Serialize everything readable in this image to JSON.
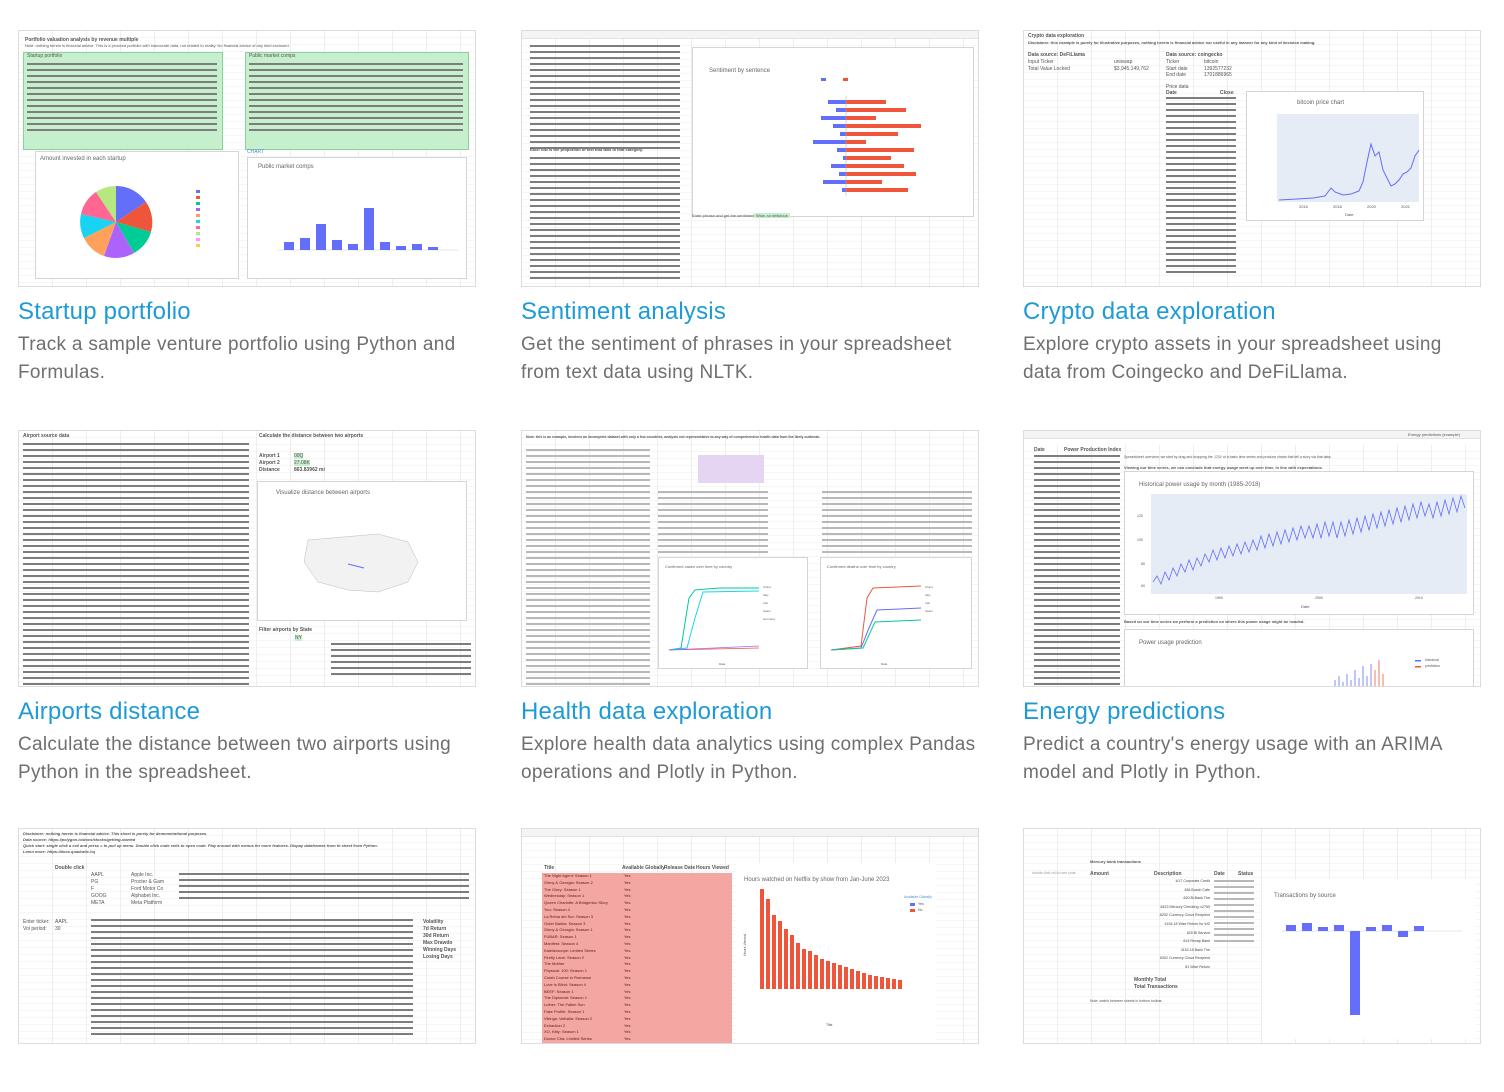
{
  "cards": [
    {
      "title": "Startup portfolio",
      "description": "Track a sample venture portfolio using Python and Formulas.",
      "thumb": {
        "heading": "Portfolio valuation analysis by revenue multiple",
        "note": "Note: nothing herein is financial advice. This is a proceed portfolio with inaccurate data, not related to reality. No financial advice of any kind enclosed.",
        "left_table_label": "Startup portfolio",
        "right_table_label": "Public market comps",
        "pie_title": "Amount invested in each startup",
        "bar_title": "Public market comps",
        "chart_badge": "CHART"
      }
    },
    {
      "title": "Sentiment analysis",
      "description": "Get the sentiment of phrases in your spreadsheet from text data using NLTK.",
      "thumb": {
        "chart_title": "Sentiment by sentence",
        "legend": [
          "Negative",
          "Positive"
        ],
        "section": "Each row is the proportion of text that falls in that category.",
        "input_prompt": "Enter phrase and get the sentiment →",
        "input_value": "Wow, so delicious",
        "col_headers": [
          "Sentence",
          "Negative",
          "Neutral",
          "Positive"
        ]
      }
    },
    {
      "title": "Crypto data exploration",
      "description": "Explore crypto assets in your spreadsheet using data from Coingecko and DeFiLlama.",
      "thumb": {
        "heading": "Crypto data exploration",
        "disclaimer": "Disclaimer: this example is purely for illustrative purposes, nothing herein is financial advice nor useful in any manner for any kind of decision making.",
        "source_left": "Data source: DeFiLlama",
        "source_right": "Data source: coingecko",
        "input_label": "Input Ticker",
        "input_value": "uniswap",
        "tvl_label": "Total Value Locked",
        "tvl_value": "$3,945,149,762",
        "ticker_label": "Ticker",
        "ticker_value": "bitcoin",
        "start_label": "Start date",
        "start_value": "1392577232",
        "end_label": "End date",
        "end_value": "1701886965",
        "price_label": "Price data",
        "col_date": "Date",
        "col_close": "Close",
        "chart_title": "bitcoin price chart",
        "x_ticks": [
          "2016",
          "2018",
          "2020",
          "2022"
        ],
        "x_label": "Date",
        "y_label": "Close"
      }
    },
    {
      "title": "Airports distance",
      "description": "Calculate the distance between two airports using Python in the spreadsheet.",
      "thumb": {
        "heading": "Airport source data",
        "calc_heading": "Calculate the distance between two airports",
        "airport1": "Airport 1",
        "airport1_code": "00Q",
        "airport2": "Airport 2",
        "airport2_code": "27.08K",
        "distance_label": "Distance",
        "distance_value": "863.83962 mi",
        "map_title": "Visualize distance between airports",
        "filter_heading": "Filter airports by State",
        "filter_value": "NY",
        "cols": [
          "index",
          "iata",
          "name",
          "city",
          "state",
          "country",
          "latitude",
          "longitude"
        ]
      }
    },
    {
      "title": "Health data exploration",
      "description": "Explore health data analytics using complex Pandas operations and Plotly in Python.",
      "thumb": {
        "note": "Note: this is an example, involves an incomplete dataset with only a few countries, analysis not representative to any way of comprehensive health data from the likely outbreak.",
        "chart1_title": "Confirmed cases over time by country",
        "chart2_title": "Confirmed deaths over time by country",
        "x_label": "Date"
      }
    },
    {
      "title": "Energy predictions",
      "description": "Predict a country's energy usage with an ARIMA model and Plotly in Python.",
      "thumb": {
        "tab": "Energy predictions (example)",
        "col1": "Date",
        "col2": "Power Production Index",
        "overview": "Spreadsheet overview: we start by drag and dropping the .CSV of a basic time series and produce charts that tell a story via that data.",
        "observation": "Viewing our time series, we can conclude that energy usage went up over time, in line with expectations.",
        "source": "Data source: https://fred.stlouisfed.org/series/IPG2211S",
        "chart1_title": "Historical power usage by month (1985-2018)",
        "chart1_y": "Power Production Index",
        "chart1_x": "Date",
        "x_ticks": [
          "1990",
          "2000",
          "2010"
        ],
        "y_ticks": [
          "120",
          "100",
          "80",
          "60"
        ],
        "prediction_note": "Based on our time series we perform a prediction on where this power usage might be headed.",
        "chart2_title": "Power usage prediction",
        "legend": [
          "historical",
          "prediction"
        ]
      }
    },
    {
      "title": "",
      "description": "",
      "thumb": {
        "disclaimer": "Disclaimer: nothing herein is financial advice. This sheet is purely for demonstrational purposes.",
        "source": "Data source: https://polygon.io/docs/stocks/getting-started",
        "quick_start": "Quick start: single click a cell and press = to pull up menu. Double click code cells to open code. Play around with menus for more features. Dispay dataframes from th sheet from Python.",
        "learn": "Learn more: https://docs.quadratic.hq",
        "double_click": "Double click",
        "tickers": [
          "AAPL",
          "PG",
          "F",
          "GOOG",
          "META"
        ],
        "names": [
          "Apple Inc.",
          "Procter & Gam",
          "Ford Motor Co",
          "Alphabet Inc.",
          "Meta Platform"
        ],
        "enter_ticker": "Enter ticker:",
        "ticker_value": "AAPL",
        "vol_period": "Vol period:",
        "vol_value": "30",
        "stats": [
          "Volatility",
          "7d Return",
          "30d Return",
          "Max Drawdo",
          "Winning Days",
          "Losing Days"
        ]
      }
    },
    {
      "title": "",
      "description": "",
      "thumb": {
        "col_title": "Title",
        "col_available": "Available Globally",
        "col_release": "Release Date",
        "col_hours": "Hours Viewed",
        "chart_title": "Hours watched on Netflix by show from Jan-June 2023",
        "legend_title": "Available Globally",
        "legend": [
          "Yes",
          "No"
        ],
        "y_label": "Hours Viewed",
        "x_label": "Title",
        "shows": [
          "The Night Agent: Season 1",
          "Ginny & Georgia: Season 2",
          "The Glory: Season 1",
          "Wednesday: Season 1",
          "Queen Charlotte: A Bridgerton Story",
          "You: Season 4",
          "La Reina del Sur: Season 3",
          "Outer Banks: Season 3",
          "Ginny & Georgia: Season 1",
          "FUBAR: Season 1",
          "Manifest: Season 4",
          "Kaleidoscope: Limited Series",
          "Firefly Lane: Season 2",
          "The Mother",
          "Physical: 100: Season 1",
          "Crash Course in Romance",
          "Love Is Blind: Season 4",
          "BEEF: Season 1",
          "The Diplomat: Season 1",
          "Luther: The Fallen Sun",
          "Fake Profile: Season 1",
          "Vikings: Valhalla: Season 2",
          "Extraction 2",
          "XO, Kitty: Season 1",
          "Doctor Cha: Limited Series"
        ],
        "available": "Yes"
      }
    },
    {
      "title": "",
      "description": "",
      "thumb": {
        "heading": "Mercury bank transactions",
        "hint": "double click cell to see code",
        "col_amount": "Amount",
        "col_desc": "Description",
        "col_date": "Date",
        "col_status": "Status",
        "rows": [
          "4/17 Corporate Credit",
          "456 Bosch Cafe",
          "620 Bl Bank The",
          "6413 Mercury Checking ••2760",
          "-8252 Currency Cloud Recipient",
          "4154.18 Wise Return for WZ",
          "620 Bl Service",
          "614 Recap Bank",
          "4154.18 Bank The",
          "8302 Currency Cloud Recipient",
          "81 Wise Return"
        ],
        "monthly": "Monthly Total",
        "total": "Total Transactions",
        "footnote": "Note: switch between sheets in bottom toolbar.",
        "chart_title": "Transactions by source"
      }
    }
  ]
}
